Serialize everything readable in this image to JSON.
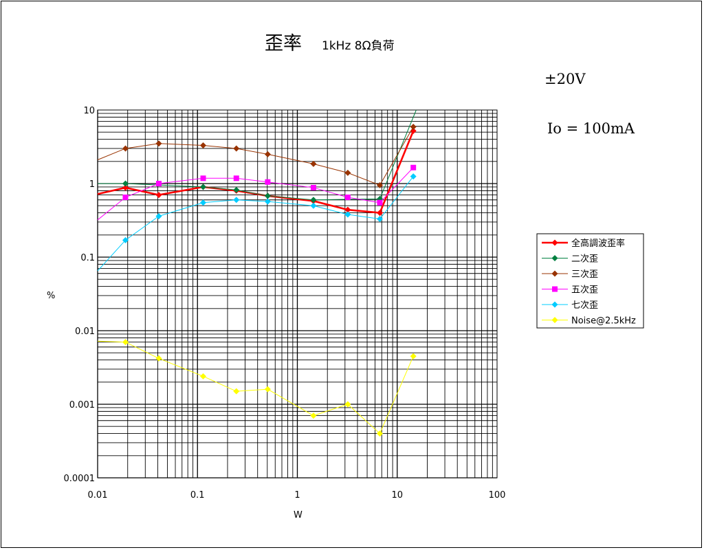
{
  "chart_data": {
    "type": "line",
    "title": "歪率",
    "subtitle": "1kHz 8Ω負荷",
    "annotations": [
      "±20V",
      "Io = 100mA"
    ],
    "xlabel": "W",
    "ylabel": "%",
    "x_scale": "log",
    "y_scale": "log",
    "xlim": [
      0.01,
      100
    ],
    "ylim": [
      0.0001,
      10
    ],
    "x_tick_labels": [
      "0.01",
      "0.1",
      "1",
      "10",
      "100"
    ],
    "y_tick_labels": [
      "10",
      "1",
      "0.1",
      "0.01",
      "0.001",
      "0.0001"
    ],
    "grid": true,
    "legend_position": "right",
    "series": [
      {
        "name": "全高調波歪率",
        "color": "#ff0000",
        "marker": "diamond",
        "x": [
          0.01,
          0.019,
          0.041,
          0.114,
          0.245,
          0.505,
          1.45,
          3.2,
          6.7,
          14.5
        ],
        "y": [
          0.72,
          0.88,
          0.7,
          0.9,
          0.8,
          0.68,
          0.58,
          0.44,
          0.4,
          5.2
        ]
      },
      {
        "name": "二次歪",
        "color": "#008040",
        "marker": "diamond",
        "x": [
          0.01,
          0.019,
          0.114,
          0.245,
          0.505,
          1.45,
          6.7,
          15.5
        ],
        "y": [
          1.0,
          1.0,
          0.9,
          0.82,
          0.68,
          0.6,
          0.62,
          10.0
        ]
      },
      {
        "name": "三次歪",
        "color": "#993300",
        "marker": "diamond",
        "x": [
          0.01,
          0.019,
          0.041,
          0.114,
          0.245,
          0.505,
          1.45,
          3.2,
          6.7,
          14.5
        ],
        "y": [
          2.1,
          3.0,
          3.5,
          3.3,
          3.0,
          2.5,
          1.85,
          1.4,
          0.95,
          5.9
        ]
      },
      {
        "name": "五次歪",
        "color": "#ff00ff",
        "marker": "square",
        "x": [
          0.01,
          0.019,
          0.041,
          0.114,
          0.245,
          0.505,
          1.45,
          3.2,
          6.7,
          14.5
        ],
        "y": [
          0.32,
          0.65,
          1.0,
          1.18,
          1.18,
          1.05,
          0.88,
          0.65,
          0.55,
          1.65
        ]
      },
      {
        "name": "七次歪",
        "color": "#00ccff",
        "marker": "diamond",
        "x": [
          0.01,
          0.019,
          0.041,
          0.114,
          0.245,
          0.505,
          1.45,
          3.2,
          6.7,
          14.5
        ],
        "y": [
          0.065,
          0.17,
          0.36,
          0.55,
          0.6,
          0.57,
          0.5,
          0.38,
          0.33,
          1.25
        ]
      },
      {
        "name": "Noise@2.5kHz",
        "color": "#ffff00",
        "marker": "diamond",
        "x": [
          0.01,
          0.019,
          0.041,
          0.114,
          0.245,
          0.505,
          1.45,
          3.2,
          6.7,
          14.5
        ],
        "y": [
          0.0072,
          0.007,
          0.0042,
          0.0024,
          0.0015,
          0.0016,
          0.0007,
          0.001,
          0.0004,
          0.0045
        ]
      }
    ]
  }
}
